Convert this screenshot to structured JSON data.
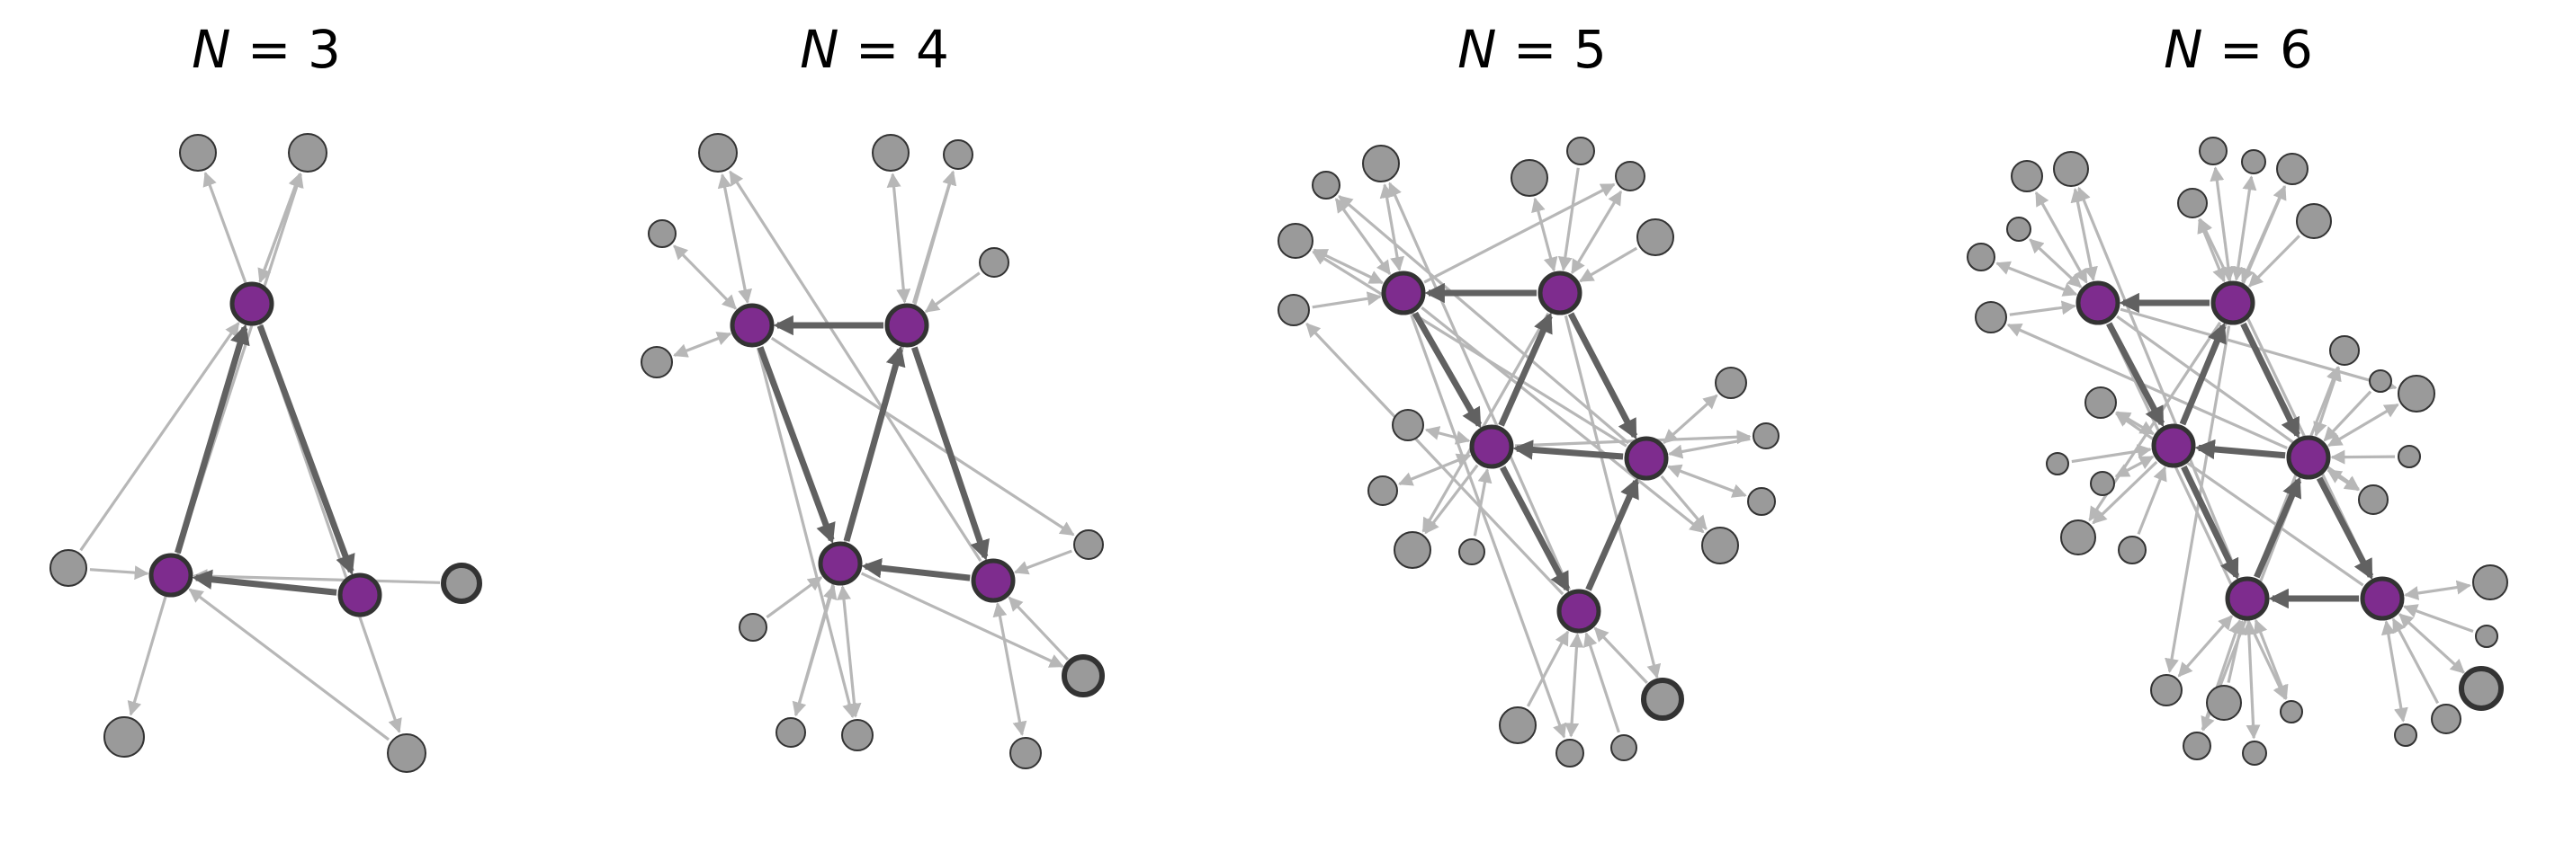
{
  "colors": {
    "core_node": "#7e2c8e",
    "outer_node": "#9a9a9a",
    "core_edge": "#616161",
    "background_edge": "#b7b7b7",
    "node_stroke": "#333333"
  },
  "panels": [
    {
      "title_var": "N",
      "title_eq": " = ",
      "title_num": "3",
      "core": [
        [
          280,
          338
        ],
        [
          190,
          640
        ],
        [
          400,
          662
        ]
      ],
      "coreEdges": [
        [
          0,
          2
        ],
        [
          2,
          1
        ],
        [
          1,
          0
        ]
      ],
      "outer": [
        [
          220,
          170,
          20
        ],
        [
          342,
          170,
          21
        ],
        [
          76,
          632,
          20
        ],
        [
          138,
          820,
          22
        ],
        [
          452,
          838,
          21
        ],
        [
          513,
          649,
          20,
          1
        ]
      ],
      "bgEdges": [
        [
          0,
          0,
          "out",
          1,
          "to"
        ],
        [
          0,
          0,
          "core",
          1,
          "from"
        ],
        [
          0,
          1,
          "out",
          1,
          "to"
        ],
        [
          0,
          1,
          "core",
          2,
          "from"
        ],
        [
          0,
          0,
          "out",
          2,
          "from"
        ],
        [
          0,
          0,
          "out",
          3,
          "both"
        ],
        [
          0,
          0,
          "out",
          4,
          "to"
        ],
        [
          0,
          1,
          "out",
          4,
          "from"
        ],
        [
          0,
          1,
          "out",
          5,
          "from"
        ],
        [
          0,
          2,
          "out",
          0,
          "to"
        ]
      ]
    },
    {
      "title_var": "N",
      "title_eq": " = ",
      "title_num": "4",
      "core": [
        [
          836,
          362
        ],
        [
          1008,
          362
        ],
        [
          934,
          627
        ],
        [
          1104,
          646
        ]
      ],
      "coreEdges": [
        [
          1,
          0
        ],
        [
          0,
          2
        ],
        [
          2,
          1
        ],
        [
          1,
          3
        ],
        [
          3,
          2
        ]
      ],
      "outer": [
        [
          798,
          170,
          21
        ],
        [
          990,
          170,
          20
        ],
        [
          1065,
          172,
          16
        ],
        [
          736,
          260,
          15
        ],
        [
          1105,
          292,
          16
        ],
        [
          730,
          403,
          17
        ],
        [
          1210,
          606,
          16
        ],
        [
          837,
          698,
          15
        ],
        [
          879,
          815,
          16
        ],
        [
          953,
          818,
          17
        ],
        [
          1140,
          838,
          17
        ],
        [
          1204,
          752,
          21,
          1
        ]
      ],
      "bgEdges": [
        [
          1,
          0,
          "out",
          0,
          "both"
        ],
        [
          1,
          0,
          "out",
          3,
          "both"
        ],
        [
          1,
          0,
          "out",
          5,
          "both"
        ],
        [
          1,
          1,
          "out",
          1,
          "both"
        ],
        [
          1,
          1,
          "out",
          2,
          "to"
        ],
        [
          1,
          1,
          "out",
          4,
          "from"
        ],
        [
          1,
          2,
          "out",
          7,
          "from"
        ],
        [
          1,
          2,
          "out",
          8,
          "from"
        ],
        [
          1,
          2,
          "out",
          9,
          "both"
        ],
        [
          1,
          3,
          "out",
          10,
          "both"
        ],
        [
          1,
          3,
          "out",
          11,
          "from"
        ],
        [
          1,
          3,
          "out",
          6,
          "from"
        ],
        [
          1,
          0,
          "out",
          6,
          "to"
        ],
        [
          1,
          1,
          "out",
          8,
          "to"
        ],
        [
          1,
          2,
          "out",
          2,
          "to"
        ],
        [
          1,
          3,
          "out",
          0,
          "to"
        ],
        [
          1,
          0,
          "out",
          9,
          "to"
        ],
        [
          1,
          2,
          "out",
          11,
          "to"
        ]
      ]
    },
    {
      "title_var": "N",
      "title_eq": " = ",
      "title_num": "5",
      "core": [
        [
          1560,
          326
        ],
        [
          1734,
          326
        ],
        [
          1658,
          497
        ],
        [
          1830,
          510
        ],
        [
          1755,
          680
        ]
      ],
      "coreEdges": [
        [
          1,
          0
        ],
        [
          0,
          2
        ],
        [
          2,
          1
        ],
        [
          1,
          3
        ],
        [
          3,
          2
        ],
        [
          2,
          4
        ],
        [
          4,
          3
        ]
      ],
      "outer": [
        [
          1535,
          182,
          20
        ],
        [
          1700,
          198,
          20
        ],
        [
          1757,
          168,
          15
        ],
        [
          1812,
          196,
          16
        ],
        [
          1474,
          206,
          15
        ],
        [
          1840,
          264,
          20
        ],
        [
          1440,
          268,
          19
        ],
        [
          1438,
          345,
          17
        ],
        [
          1924,
          426,
          17
        ],
        [
          1565,
          473,
          17
        ],
        [
          1963,
          485,
          14
        ],
        [
          1537,
          546,
          16
        ],
        [
          1958,
          558,
          15
        ],
        [
          1912,
          607,
          20
        ],
        [
          1570,
          612,
          20
        ],
        [
          1636,
          614,
          14
        ],
        [
          1687,
          807,
          20
        ],
        [
          1745,
          838,
          15
        ],
        [
          1805,
          832,
          14
        ],
        [
          1848,
          778,
          21,
          1
        ]
      ],
      "bgEdges": [
        [
          2,
          0,
          "out",
          0,
          "both"
        ],
        [
          2,
          0,
          "out",
          4,
          "both"
        ],
        [
          2,
          0,
          "out",
          6,
          "both"
        ],
        [
          2,
          0,
          "out",
          7,
          "from"
        ],
        [
          2,
          1,
          "out",
          1,
          "both"
        ],
        [
          2,
          1,
          "out",
          2,
          "from"
        ],
        [
          2,
          1,
          "out",
          3,
          "both"
        ],
        [
          2,
          1,
          "out",
          5,
          "from"
        ],
        [
          2,
          3,
          "out",
          8,
          "both"
        ],
        [
          2,
          3,
          "out",
          10,
          "from"
        ],
        [
          2,
          3,
          "out",
          12,
          "both"
        ],
        [
          2,
          3,
          "out",
          13,
          "to"
        ],
        [
          2,
          2,
          "out",
          9,
          "both"
        ],
        [
          2,
          2,
          "out",
          11,
          "both"
        ],
        [
          2,
          2,
          "out",
          14,
          "to"
        ],
        [
          2,
          2,
          "out",
          15,
          "from"
        ],
        [
          2,
          4,
          "out",
          16,
          "from"
        ],
        [
          2,
          4,
          "out",
          17,
          "both"
        ],
        [
          2,
          4,
          "out",
          18,
          "from"
        ],
        [
          2,
          4,
          "out",
          19,
          "from"
        ],
        [
          2,
          0,
          "out",
          13,
          "to"
        ],
        [
          2,
          1,
          "out",
          14,
          "to"
        ],
        [
          2,
          0,
          "out",
          17,
          "to"
        ],
        [
          2,
          1,
          "out",
          19,
          "to"
        ],
        [
          2,
          3,
          "out",
          6,
          "to"
        ],
        [
          2,
          4,
          "out",
          0,
          "to"
        ],
        [
          2,
          0,
          "out",
          3,
          "to"
        ],
        [
          2,
          2,
          "out",
          10,
          "to"
        ],
        [
          2,
          4,
          "out",
          7,
          "to"
        ],
        [
          2,
          3,
          "out",
          4,
          "to"
        ]
      ]
    },
    {
      "title_var": "N",
      "title_eq": " = ",
      "title_num": "6",
      "core": [
        [
          2332,
          337
        ],
        [
          2482,
          337
        ],
        [
          2416,
          496
        ],
        [
          2566,
          509
        ],
        [
          2498,
          666
        ],
        [
          2648,
          666
        ]
      ],
      "coreEdges": [
        [
          1,
          0
        ],
        [
          0,
          2
        ],
        [
          2,
          1
        ],
        [
          1,
          3
        ],
        [
          3,
          2
        ],
        [
          2,
          4
        ],
        [
          4,
          3
        ],
        [
          3,
          5
        ],
        [
          5,
          4
        ]
      ],
      "outer": [
        [
          2253,
          196,
          17
        ],
        [
          2302,
          188,
          19
        ],
        [
          2460,
          168,
          15
        ],
        [
          2505,
          180,
          13
        ],
        [
          2548,
          188,
          17
        ],
        [
          2244,
          255,
          13
        ],
        [
          2437,
          226,
          16
        ],
        [
          2572,
          246,
          19
        ],
        [
          2202,
          286,
          15
        ],
        [
          2213,
          353,
          17
        ],
        [
          2606,
          390,
          16
        ],
        [
          2646,
          424,
          12
        ],
        [
          2686,
          438,
          20
        ],
        [
          2335,
          448,
          17
        ],
        [
          2287,
          516,
          12
        ],
        [
          2678,
          508,
          12
        ],
        [
          2337,
          538,
          13
        ],
        [
          2638,
          556,
          16
        ],
        [
          2310,
          598,
          19
        ],
        [
          2370,
          612,
          15
        ],
        [
          2768,
          648,
          19
        ],
        [
          2764,
          708,
          12
        ],
        [
          2408,
          768,
          17
        ],
        [
          2472,
          782,
          19
        ],
        [
          2547,
          792,
          12
        ],
        [
          2758,
          766,
          22,
          1
        ],
        [
          2719,
          800,
          16
        ],
        [
          2674,
          818,
          12
        ],
        [
          2442,
          830,
          15
        ],
        [
          2506,
          838,
          13
        ]
      ],
      "bgEdges": [
        [
          3,
          0,
          "out",
          0,
          "both"
        ],
        [
          3,
          0,
          "out",
          1,
          "both"
        ],
        [
          3,
          0,
          "out",
          5,
          "both"
        ],
        [
          3,
          0,
          "out",
          8,
          "both"
        ],
        [
          3,
          0,
          "out",
          9,
          "from"
        ],
        [
          3,
          1,
          "out",
          2,
          "both"
        ],
        [
          3,
          1,
          "out",
          3,
          "both"
        ],
        [
          3,
          1,
          "out",
          4,
          "from"
        ],
        [
          3,
          1,
          "out",
          6,
          "both"
        ],
        [
          3,
          1,
          "out",
          7,
          "from"
        ],
        [
          3,
          2,
          "out",
          13,
          "both"
        ],
        [
          3,
          2,
          "out",
          14,
          "from"
        ],
        [
          3,
          2,
          "out",
          16,
          "both"
        ],
        [
          3,
          2,
          "out",
          18,
          "to"
        ],
        [
          3,
          2,
          "out",
          19,
          "from"
        ],
        [
          3,
          3,
          "out",
          10,
          "both"
        ],
        [
          3,
          3,
          "out",
          11,
          "from"
        ],
        [
          3,
          3,
          "out",
          12,
          "both"
        ],
        [
          3,
          3,
          "out",
          15,
          "from"
        ],
        [
          3,
          3,
          "out",
          17,
          "both"
        ],
        [
          3,
          4,
          "out",
          22,
          "both"
        ],
        [
          3,
          4,
          "out",
          23,
          "from"
        ],
        [
          3,
          4,
          "out",
          24,
          "both"
        ],
        [
          3,
          4,
          "out",
          28,
          "from"
        ],
        [
          3,
          4,
          "out",
          29,
          "both"
        ],
        [
          3,
          5,
          "out",
          20,
          "both"
        ],
        [
          3,
          5,
          "out",
          21,
          "from"
        ],
        [
          3,
          5,
          "out",
          25,
          "both"
        ],
        [
          3,
          5,
          "out",
          26,
          "from"
        ],
        [
          3,
          5,
          "out",
          27,
          "both"
        ],
        [
          3,
          0,
          "out",
          17,
          "to"
        ],
        [
          3,
          1,
          "out",
          18,
          "to"
        ],
        [
          3,
          0,
          "out",
          24,
          "to"
        ],
        [
          3,
          1,
          "out",
          22,
          "to"
        ],
        [
          3,
          3,
          "out",
          9,
          "to"
        ],
        [
          3,
          5,
          "out",
          13,
          "to"
        ],
        [
          3,
          4,
          "out",
          1,
          "to"
        ],
        [
          3,
          2,
          "out",
          4,
          "to"
        ],
        [
          3,
          3,
          "out",
          28,
          "to"
        ],
        [
          3,
          5,
          "out",
          6,
          "to"
        ],
        [
          3,
          0,
          "out",
          12,
          "to"
        ],
        [
          3,
          4,
          "out",
          10,
          "to"
        ]
      ]
    }
  ]
}
